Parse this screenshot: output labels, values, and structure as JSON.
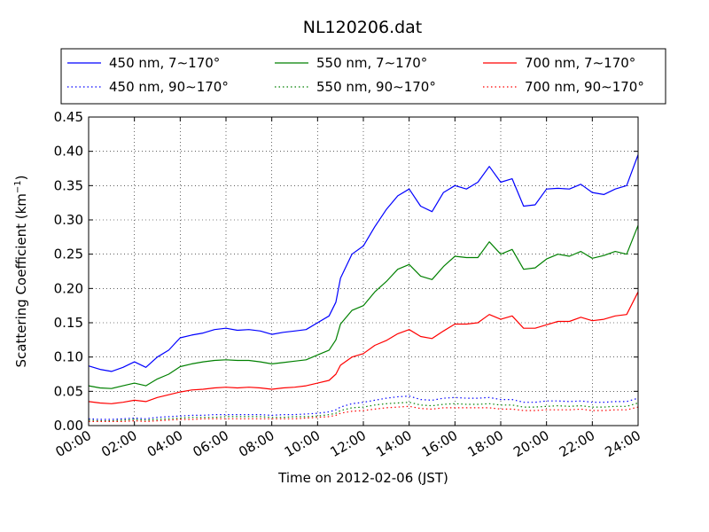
{
  "chart_data": {
    "type": "line",
    "title": "NL120206.dat",
    "xlabel": "Time on 2012-02-06 (JST)",
    "ylabel": "Scattering Coefficient (km",
    "ylabel_sup": "−1",
    "ylabel_close": ")",
    "xlim": [
      0,
      24
    ],
    "ylim": [
      0,
      0.45
    ],
    "x_unit": "hours",
    "grid": true,
    "grid_style": "dotted",
    "legend_placement": "top (above plot), 3 columns",
    "x_ticks": [
      {
        "value": 0,
        "label": "00:00"
      },
      {
        "value": 2,
        "label": "02:00"
      },
      {
        "value": 4,
        "label": "04:00"
      },
      {
        "value": 6,
        "label": "06:00"
      },
      {
        "value": 8,
        "label": "08:00"
      },
      {
        "value": 10,
        "label": "10:00"
      },
      {
        "value": 12,
        "label": "12:00"
      },
      {
        "value": 14,
        "label": "14:00"
      },
      {
        "value": 16,
        "label": "16:00"
      },
      {
        "value": 18,
        "label": "18:00"
      },
      {
        "value": 20,
        "label": "20:00"
      },
      {
        "value": 22,
        "label": "22:00"
      },
      {
        "value": 24,
        "label": "24:00"
      }
    ],
    "y_ticks": [
      {
        "value": 0.0,
        "label": "0.00"
      },
      {
        "value": 0.05,
        "label": "0.05"
      },
      {
        "value": 0.1,
        "label": "0.10"
      },
      {
        "value": 0.15,
        "label": "0.15"
      },
      {
        "value": 0.2,
        "label": "0.20"
      },
      {
        "value": 0.25,
        "label": "0.25"
      },
      {
        "value": 0.3,
        "label": "0.30"
      },
      {
        "value": 0.35,
        "label": "0.35"
      },
      {
        "value": 0.4,
        "label": "0.40"
      },
      {
        "value": 0.45,
        "label": "0.45"
      }
    ],
    "x": [
      0.0,
      0.5,
      1.0,
      1.5,
      2.0,
      2.5,
      3.0,
      3.5,
      4.0,
      4.5,
      5.0,
      5.5,
      6.0,
      6.5,
      7.0,
      7.5,
      8.0,
      8.5,
      9.0,
      9.5,
      10.0,
      10.5,
      10.8,
      11.0,
      11.5,
      12.0,
      12.5,
      13.0,
      13.5,
      14.0,
      14.5,
      15.0,
      15.5,
      16.0,
      16.5,
      17.0,
      17.5,
      18.0,
      18.5,
      19.0,
      19.5,
      20.0,
      20.5,
      21.0,
      21.5,
      22.0,
      22.5,
      23.0,
      23.5,
      24.0
    ],
    "series": [
      {
        "name": "450 nm, 7∼170°",
        "color": "#0000ff",
        "style": "solid",
        "values": [
          0.087,
          0.082,
          0.079,
          0.085,
          0.093,
          0.085,
          0.1,
          0.11,
          0.128,
          0.132,
          0.135,
          0.14,
          0.142,
          0.139,
          0.14,
          0.138,
          0.133,
          0.136,
          0.138,
          0.14,
          0.15,
          0.16,
          0.18,
          0.215,
          0.25,
          0.262,
          0.29,
          0.315,
          0.335,
          0.345,
          0.32,
          0.312,
          0.34,
          0.35,
          0.345,
          0.355,
          0.378,
          0.355,
          0.36,
          0.32,
          0.322,
          0.345,
          0.346,
          0.345,
          0.352,
          0.34,
          0.337,
          0.345,
          0.35,
          0.395
        ]
      },
      {
        "name": "550 nm, 7∼170°",
        "color": "#008000",
        "style": "solid",
        "values": [
          0.058,
          0.055,
          0.054,
          0.058,
          0.062,
          0.058,
          0.068,
          0.075,
          0.086,
          0.09,
          0.093,
          0.095,
          0.096,
          0.095,
          0.095,
          0.093,
          0.09,
          0.092,
          0.094,
          0.096,
          0.103,
          0.11,
          0.125,
          0.148,
          0.168,
          0.175,
          0.195,
          0.21,
          0.228,
          0.235,
          0.218,
          0.213,
          0.232,
          0.247,
          0.245,
          0.245,
          0.268,
          0.25,
          0.257,
          0.228,
          0.23,
          0.243,
          0.25,
          0.247,
          0.254,
          0.244,
          0.248,
          0.254,
          0.25,
          0.292
        ]
      },
      {
        "name": "700 nm, 7∼170°",
        "color": "#ff0000",
        "style": "solid",
        "values": [
          0.035,
          0.033,
          0.032,
          0.034,
          0.037,
          0.035,
          0.041,
          0.045,
          0.049,
          0.052,
          0.053,
          0.055,
          0.056,
          0.055,
          0.056,
          0.055,
          0.053,
          0.055,
          0.056,
          0.058,
          0.062,
          0.066,
          0.075,
          0.088,
          0.1,
          0.105,
          0.117,
          0.124,
          0.134,
          0.14,
          0.13,
          0.127,
          0.138,
          0.148,
          0.148,
          0.15,
          0.162,
          0.155,
          0.16,
          0.142,
          0.142,
          0.147,
          0.152,
          0.152,
          0.158,
          0.153,
          0.155,
          0.16,
          0.162,
          0.195
        ]
      },
      {
        "name": "450 nm, 90∼170°",
        "color": "#0000ff",
        "style": "dotted",
        "values": [
          0.01,
          0.009,
          0.009,
          0.01,
          0.011,
          0.01,
          0.012,
          0.013,
          0.014,
          0.015,
          0.015,
          0.016,
          0.016,
          0.016,
          0.016,
          0.016,
          0.015,
          0.016,
          0.016,
          0.017,
          0.018,
          0.02,
          0.023,
          0.027,
          0.032,
          0.034,
          0.037,
          0.04,
          0.042,
          0.043,
          0.038,
          0.037,
          0.04,
          0.041,
          0.04,
          0.04,
          0.041,
          0.038,
          0.038,
          0.034,
          0.034,
          0.036,
          0.036,
          0.035,
          0.036,
          0.034,
          0.034,
          0.035,
          0.035,
          0.04
        ]
      },
      {
        "name": "550 nm, 90∼170°",
        "color": "#008000",
        "style": "dotted",
        "values": [
          0.008,
          0.007,
          0.007,
          0.008,
          0.009,
          0.008,
          0.009,
          0.01,
          0.011,
          0.012,
          0.012,
          0.012,
          0.013,
          0.013,
          0.013,
          0.013,
          0.012,
          0.012,
          0.013,
          0.013,
          0.014,
          0.016,
          0.018,
          0.022,
          0.026,
          0.027,
          0.03,
          0.032,
          0.033,
          0.034,
          0.03,
          0.029,
          0.031,
          0.032,
          0.031,
          0.031,
          0.032,
          0.03,
          0.03,
          0.027,
          0.027,
          0.028,
          0.029,
          0.028,
          0.029,
          0.027,
          0.027,
          0.028,
          0.028,
          0.033
        ]
      },
      {
        "name": "700 nm, 90∼170°",
        "color": "#ff0000",
        "style": "dotted",
        "values": [
          0.006,
          0.006,
          0.006,
          0.006,
          0.007,
          0.006,
          0.007,
          0.008,
          0.009,
          0.009,
          0.01,
          0.01,
          0.01,
          0.01,
          0.01,
          0.01,
          0.01,
          0.01,
          0.01,
          0.011,
          0.012,
          0.013,
          0.015,
          0.018,
          0.021,
          0.022,
          0.024,
          0.026,
          0.027,
          0.028,
          0.025,
          0.024,
          0.026,
          0.026,
          0.026,
          0.026,
          0.026,
          0.024,
          0.024,
          0.022,
          0.022,
          0.023,
          0.023,
          0.023,
          0.024,
          0.022,
          0.022,
          0.023,
          0.023,
          0.027
        ]
      }
    ]
  }
}
